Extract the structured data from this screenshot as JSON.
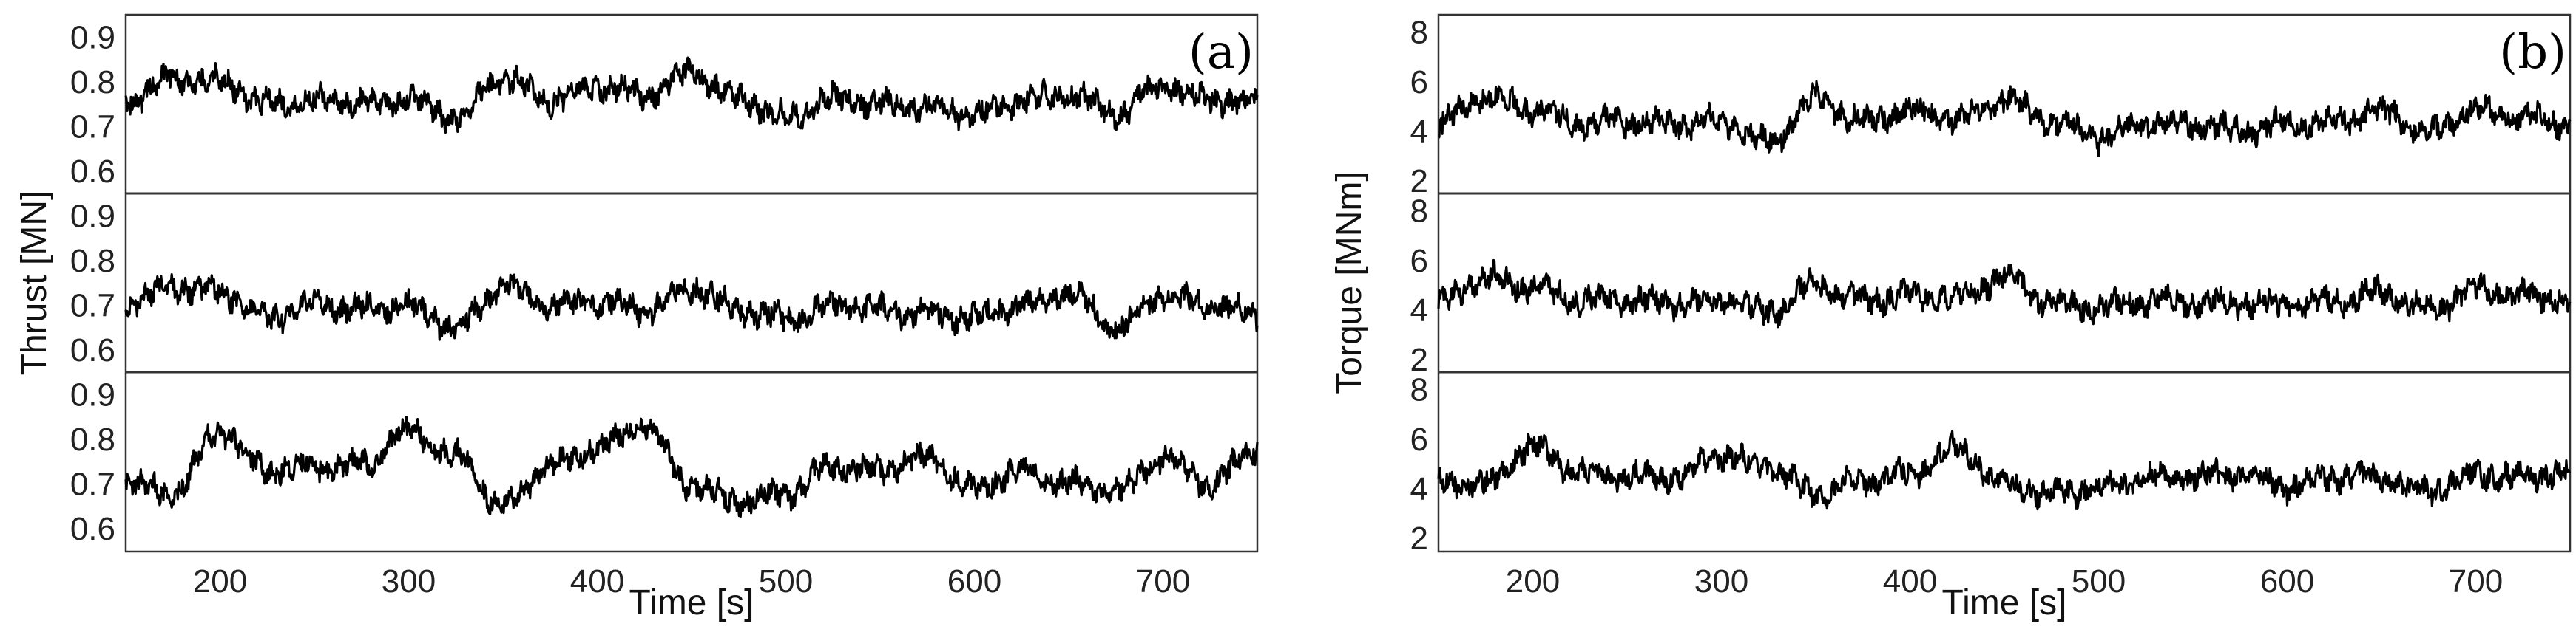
{
  "chart_data": [
    {
      "type": "line",
      "panel_tag": "(a)",
      "xlabel": "Time [s]",
      "ylabel": "Thrust [MN]",
      "xlim": [
        150,
        750
      ],
      "x_ticks": [
        200,
        300,
        400,
        500,
        600,
        700
      ],
      "x_tick_labels": [
        "200",
        "300",
        "400",
        "500",
        "600",
        "700"
      ],
      "y_ticks": [
        0.6,
        0.7,
        0.8,
        0.9
      ],
      "y_tick_labels": [
        "0.6",
        "0.7",
        "0.8",
        "0.9"
      ],
      "subplots": [
        {
          "ylim": [
            0.55,
            0.95
          ],
          "x": [
            150,
            175,
            200,
            225,
            250,
            275,
            300,
            325,
            350,
            375,
            400,
            425,
            450,
            475,
            500,
            525,
            550,
            575,
            600,
            625,
            650,
            675,
            700,
            725,
            750
          ],
          "y": [
            0.76,
            0.81,
            0.8,
            0.75,
            0.76,
            0.75,
            0.76,
            0.72,
            0.81,
            0.76,
            0.79,
            0.77,
            0.82,
            0.76,
            0.72,
            0.76,
            0.75,
            0.74,
            0.73,
            0.76,
            0.77,
            0.73,
            0.79,
            0.76,
            0.75
          ]
        },
        {
          "ylim": [
            0.55,
            0.95
          ],
          "x": [
            150,
            175,
            200,
            225,
            250,
            275,
            300,
            325,
            350,
            375,
            400,
            425,
            450,
            475,
            500,
            525,
            550,
            575,
            600,
            625,
            650,
            675,
            700,
            725,
            750
          ],
          "y": [
            0.7,
            0.74,
            0.73,
            0.67,
            0.7,
            0.69,
            0.7,
            0.65,
            0.74,
            0.7,
            0.71,
            0.69,
            0.74,
            0.69,
            0.67,
            0.7,
            0.69,
            0.68,
            0.67,
            0.7,
            0.73,
            0.65,
            0.72,
            0.7,
            0.68
          ]
        },
        {
          "ylim": [
            0.55,
            0.95
          ],
          "x": [
            150,
            175,
            200,
            225,
            250,
            275,
            300,
            325,
            350,
            375,
            400,
            425,
            450,
            475,
            500,
            525,
            550,
            575,
            600,
            625,
            650,
            675,
            700,
            725,
            750
          ],
          "y": [
            0.7,
            0.68,
            0.82,
            0.73,
            0.74,
            0.74,
            0.82,
            0.76,
            0.65,
            0.74,
            0.78,
            0.83,
            0.7,
            0.66,
            0.68,
            0.74,
            0.73,
            0.76,
            0.69,
            0.73,
            0.7,
            0.68,
            0.76,
            0.7,
            0.78
          ]
        }
      ]
    },
    {
      "type": "line",
      "panel_tag": "(b)",
      "xlabel": "Time [s]",
      "ylabel": "Torque [MNm]",
      "xlim": [
        150,
        750
      ],
      "x_ticks": [
        200,
        300,
        400,
        500,
        600,
        700
      ],
      "x_tick_labels": [
        "200",
        "300",
        "400",
        "500",
        "600",
        "700"
      ],
      "y_ticks": [
        2,
        4,
        6,
        8
      ],
      "y_tick_labels": [
        "2",
        "4",
        "6",
        "8"
      ],
      "subplots": [
        {
          "ylim": [
            1.5,
            8.7
          ],
          "x": [
            150,
            175,
            200,
            225,
            250,
            275,
            300,
            325,
            350,
            375,
            400,
            425,
            450,
            475,
            500,
            525,
            550,
            575,
            600,
            625,
            650,
            675,
            700,
            725,
            750
          ],
          "y": [
            4.3,
            5.4,
            4.9,
            4.3,
            4.4,
            4.3,
            4.4,
            3.6,
            5.3,
            4.4,
            4.8,
            4.5,
            5.3,
            4.4,
            3.8,
            4.3,
            4.3,
            4.0,
            4.3,
            4.4,
            4.8,
            4.0,
            4.9,
            4.6,
            4.3
          ]
        },
        {
          "ylim": [
            1.5,
            8.7
          ],
          "x": [
            150,
            175,
            200,
            225,
            250,
            275,
            300,
            325,
            350,
            375,
            400,
            425,
            450,
            475,
            500,
            525,
            550,
            575,
            600,
            625,
            650,
            675,
            700,
            725,
            750
          ],
          "y": [
            4.3,
            5.3,
            4.9,
            4.4,
            4.4,
            4.3,
            4.4,
            3.9,
            5.0,
            4.4,
            4.6,
            4.5,
            5.3,
            4.3,
            4.1,
            4.4,
            4.3,
            4.3,
            4.2,
            4.4,
            4.7,
            4.0,
            4.8,
            4.6,
            4.4
          ]
        },
        {
          "ylim": [
            1.5,
            8.7
          ],
          "x": [
            150,
            175,
            200,
            225,
            250,
            275,
            300,
            325,
            350,
            375,
            400,
            425,
            450,
            475,
            500,
            525,
            550,
            575,
            600,
            625,
            650,
            675,
            700,
            725,
            750
          ],
          "y": [
            4.3,
            4.2,
            5.7,
            4.6,
            4.5,
            4.5,
            5.3,
            4.9,
            3.8,
            4.3,
            4.6,
            5.6,
            4.2,
            3.8,
            4.0,
            4.4,
            4.5,
            4.6,
            4.1,
            4.5,
            4.4,
            3.9,
            4.6,
            4.5,
            4.7
          ]
        }
      ]
    }
  ]
}
